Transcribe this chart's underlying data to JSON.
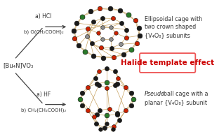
{
  "background_color": "#ffffff",
  "reagent_label": "[Bu₄N]VO₃",
  "top_arrow_label_a": "a) HCl",
  "top_arrow_label_b": "b) O(CH₂COOH)₂",
  "bottom_arrow_label_a": "a) HF",
  "bottom_arrow_label_b": "b) CH₂(CH₂COOH)₂",
  "top_desc_line1": "Ellipsoidal cage with",
  "top_desc_line2": "two crown shaped",
  "top_desc_line3": "{V₄O₈} subunits",
  "halide_label": "Halide template effect",
  "bottom_desc_italic": "Pseudo",
  "bottom_desc_line1": "-ball cage with a",
  "bottom_desc_line2": "planar {V₄O₈} subunit",
  "font_size_labels": 5.5,
  "font_size_reagent": 6.0,
  "font_size_desc": 5.8,
  "font_size_halide": 7.5,
  "arrow_color": "#444444",
  "halide_text_color": "#cc0000",
  "halide_box_color": "#ee5555",
  "desc_color": "#333333",
  "bond_color": "#c8a464",
  "color_black": "#1a1a1a",
  "color_red": "#cc2200",
  "color_green": "#2a7a2a",
  "color_grey": "#909090"
}
